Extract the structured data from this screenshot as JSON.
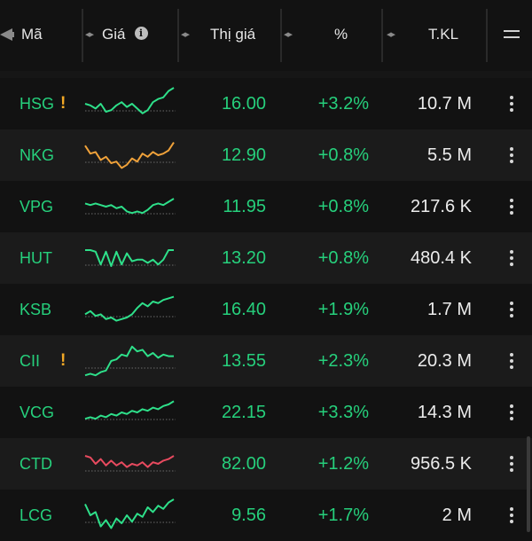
{
  "header": {
    "columns": [
      {
        "label": "Mã"
      },
      {
        "label": "Giá"
      },
      {
        "label": "Thị giá"
      },
      {
        "label": "%"
      },
      {
        "label": "T.KL"
      }
    ],
    "info_icon_glyph": "i"
  },
  "colors": {
    "up": "#26d07c",
    "warn": "#f2a825",
    "spark_green": "#2ee08a",
    "spark_orange": "#f0a23a",
    "spark_red": "#e84a5f"
  },
  "rows": [
    {
      "symbol": "HSG",
      "warn": "!",
      "price": "16.00",
      "change": "+3.2%",
      "volume": "10.7 M",
      "spark_color": "#2ee08a",
      "spark": [
        0.5,
        0.45,
        0.35,
        0.5,
        0.25,
        0.3,
        0.45,
        0.55,
        0.4,
        0.5,
        0.35,
        0.2,
        0.3,
        0.55,
        0.65,
        0.7,
        0.9,
        1.0
      ]
    },
    {
      "symbol": "NKG",
      "warn": "",
      "price": "12.90",
      "change": "+0.8%",
      "volume": "5.5 M",
      "spark_color": "#f0a23a",
      "spark": [
        0.8,
        0.55,
        0.6,
        0.35,
        0.45,
        0.25,
        0.3,
        0.1,
        0.2,
        0.4,
        0.3,
        0.55,
        0.45,
        0.6,
        0.5,
        0.55,
        0.65,
        0.9
      ]
    },
    {
      "symbol": "VPG",
      "warn": "",
      "price": "11.95",
      "change": "+0.8%",
      "volume": "217.6 K",
      "spark_color": "#2ee08a",
      "spark": [
        0.6,
        0.55,
        0.6,
        0.55,
        0.5,
        0.55,
        0.45,
        0.5,
        0.35,
        0.3,
        0.35,
        0.3,
        0.4,
        0.55,
        0.6,
        0.55,
        0.65,
        0.75
      ]
    },
    {
      "symbol": "HUT",
      "warn": "",
      "price": "13.20",
      "change": "+0.8%",
      "volume": "480.4 K",
      "spark_color": "#2ee08a",
      "spark": [
        0.75,
        0.75,
        0.7,
        0.3,
        0.7,
        0.25,
        0.7,
        0.3,
        0.65,
        0.4,
        0.45,
        0.45,
        0.35,
        0.45,
        0.3,
        0.45,
        0.75,
        0.75
      ]
    },
    {
      "symbol": "KSB",
      "warn": "",
      "price": "16.40",
      "change": "+1.9%",
      "volume": "1.7 M",
      "spark_color": "#2ee08a",
      "spark": [
        0.35,
        0.45,
        0.3,
        0.35,
        0.2,
        0.25,
        0.15,
        0.2,
        0.25,
        0.35,
        0.55,
        0.7,
        0.6,
        0.75,
        0.7,
        0.8,
        0.85,
        0.9
      ]
    },
    {
      "symbol": "CII",
      "warn": "!",
      "price": "13.55",
      "change": "+2.3%",
      "volume": "20.3 M",
      "spark_color": "#2ee08a",
      "spark": [
        0.05,
        0.1,
        0.05,
        0.15,
        0.2,
        0.5,
        0.55,
        0.7,
        0.65,
        0.95,
        0.8,
        0.85,
        0.65,
        0.75,
        0.6,
        0.7,
        0.65,
        0.65
      ]
    },
    {
      "symbol": "VCG",
      "warn": "",
      "price": "22.15",
      "change": "+3.3%",
      "volume": "14.3 M",
      "spark_color": "#2ee08a",
      "spark": [
        0.3,
        0.35,
        0.3,
        0.4,
        0.35,
        0.45,
        0.4,
        0.5,
        0.45,
        0.55,
        0.5,
        0.6,
        0.55,
        0.65,
        0.6,
        0.7,
        0.75,
        0.85
      ]
    },
    {
      "symbol": "CTD",
      "warn": "",
      "price": "82.00",
      "change": "+1.2%",
      "volume": "956.5 K",
      "spark_color": "#e84a5f",
      "spark": [
        0.75,
        0.7,
        0.5,
        0.65,
        0.45,
        0.6,
        0.45,
        0.55,
        0.4,
        0.5,
        0.45,
        0.55,
        0.4,
        0.55,
        0.5,
        0.6,
        0.65,
        0.75
      ]
    },
    {
      "symbol": "LCG",
      "warn": "",
      "price": "9.56",
      "change": "+1.7%",
      "volume": "2 M",
      "spark_color": "#2ee08a",
      "spark": [
        0.85,
        0.5,
        0.6,
        0.15,
        0.35,
        0.1,
        0.4,
        0.25,
        0.5,
        0.3,
        0.55,
        0.45,
        0.75,
        0.6,
        0.8,
        0.7,
        0.9,
        1.0
      ]
    }
  ]
}
